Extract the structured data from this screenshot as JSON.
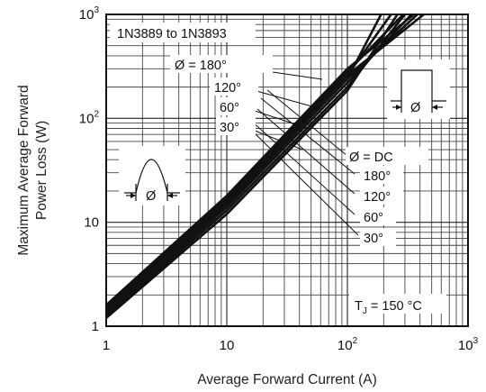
{
  "chart_data": {
    "type": "line",
    "title": "",
    "subtitle_box": "1N3889 to 1N3893",
    "xlabel": "Average Forward Current (A)",
    "ylabel_lines": [
      "Maximum Average Forward",
      "Power Loss (W)"
    ],
    "xscale": "log",
    "yscale": "log",
    "xlim": [
      1,
      1000
    ],
    "ylim": [
      1,
      1000
    ],
    "grid": true,
    "x_ticks": [
      {
        "value": 1,
        "base": "1",
        "exp": ""
      },
      {
        "value": 10,
        "base": "10",
        "exp": ""
      },
      {
        "value": 100,
        "base": "10",
        "exp": "2"
      },
      {
        "value": 1000,
        "base": "10",
        "exp": "3"
      }
    ],
    "y_ticks": [
      {
        "value": 1,
        "base": "1",
        "exp": ""
      },
      {
        "value": 10,
        "base": "10",
        "exp": ""
      },
      {
        "value": 100,
        "base": "10",
        "exp": "2"
      },
      {
        "value": 1000,
        "base": "10",
        "exp": "3"
      }
    ],
    "condition": {
      "prefix": "T",
      "sub": "J",
      "suffix": " = 150 °C"
    },
    "sine_group_labels": [
      "Ø  = 180°",
      "120°",
      "60°",
      "30°"
    ],
    "square_group_labels": [
      "Ø  = DC",
      "180°",
      "120°",
      "60°",
      "30°"
    ],
    "series": [
      {
        "group": "sine",
        "points": [
          [
            1,
            1.45
          ],
          [
            10,
            15
          ],
          [
            100,
            240
          ],
          [
            190,
            1000
          ]
        ]
      },
      {
        "group": "sine",
        "points": [
          [
            1,
            1.5
          ],
          [
            10,
            16
          ],
          [
            100,
            260
          ],
          [
            230,
            1000
          ]
        ]
      },
      {
        "group": "sine",
        "points": [
          [
            1,
            1.55
          ],
          [
            10,
            17
          ],
          [
            100,
            280
          ],
          [
            290,
            1000
          ]
        ]
      },
      {
        "group": "sine",
        "points": [
          [
            1,
            1.6
          ],
          [
            10,
            18
          ],
          [
            100,
            300
          ],
          [
            355,
            1000
          ]
        ]
      },
      {
        "group": "square",
        "points": [
          [
            1,
            1.2
          ],
          [
            10,
            12
          ],
          [
            100,
            185
          ],
          [
            260,
            1000
          ]
        ]
      },
      {
        "group": "square",
        "points": [
          [
            1,
            1.25
          ],
          [
            10,
            13
          ],
          [
            100,
            200
          ],
          [
            300,
            1000
          ]
        ]
      },
      {
        "group": "square",
        "points": [
          [
            1,
            1.3
          ],
          [
            10,
            14
          ],
          [
            100,
            220
          ],
          [
            340,
            1000
          ]
        ]
      },
      {
        "group": "square",
        "points": [
          [
            1,
            1.35
          ],
          [
            10,
            15
          ],
          [
            100,
            240
          ],
          [
            380,
            1000
          ]
        ]
      },
      {
        "group": "square",
        "points": [
          [
            1,
            1.4
          ],
          [
            10,
            16
          ],
          [
            100,
            260
          ],
          [
            430,
            1000
          ]
        ]
      }
    ],
    "sine_icon_label": "Ø",
    "square_icon_label": "Ø"
  }
}
